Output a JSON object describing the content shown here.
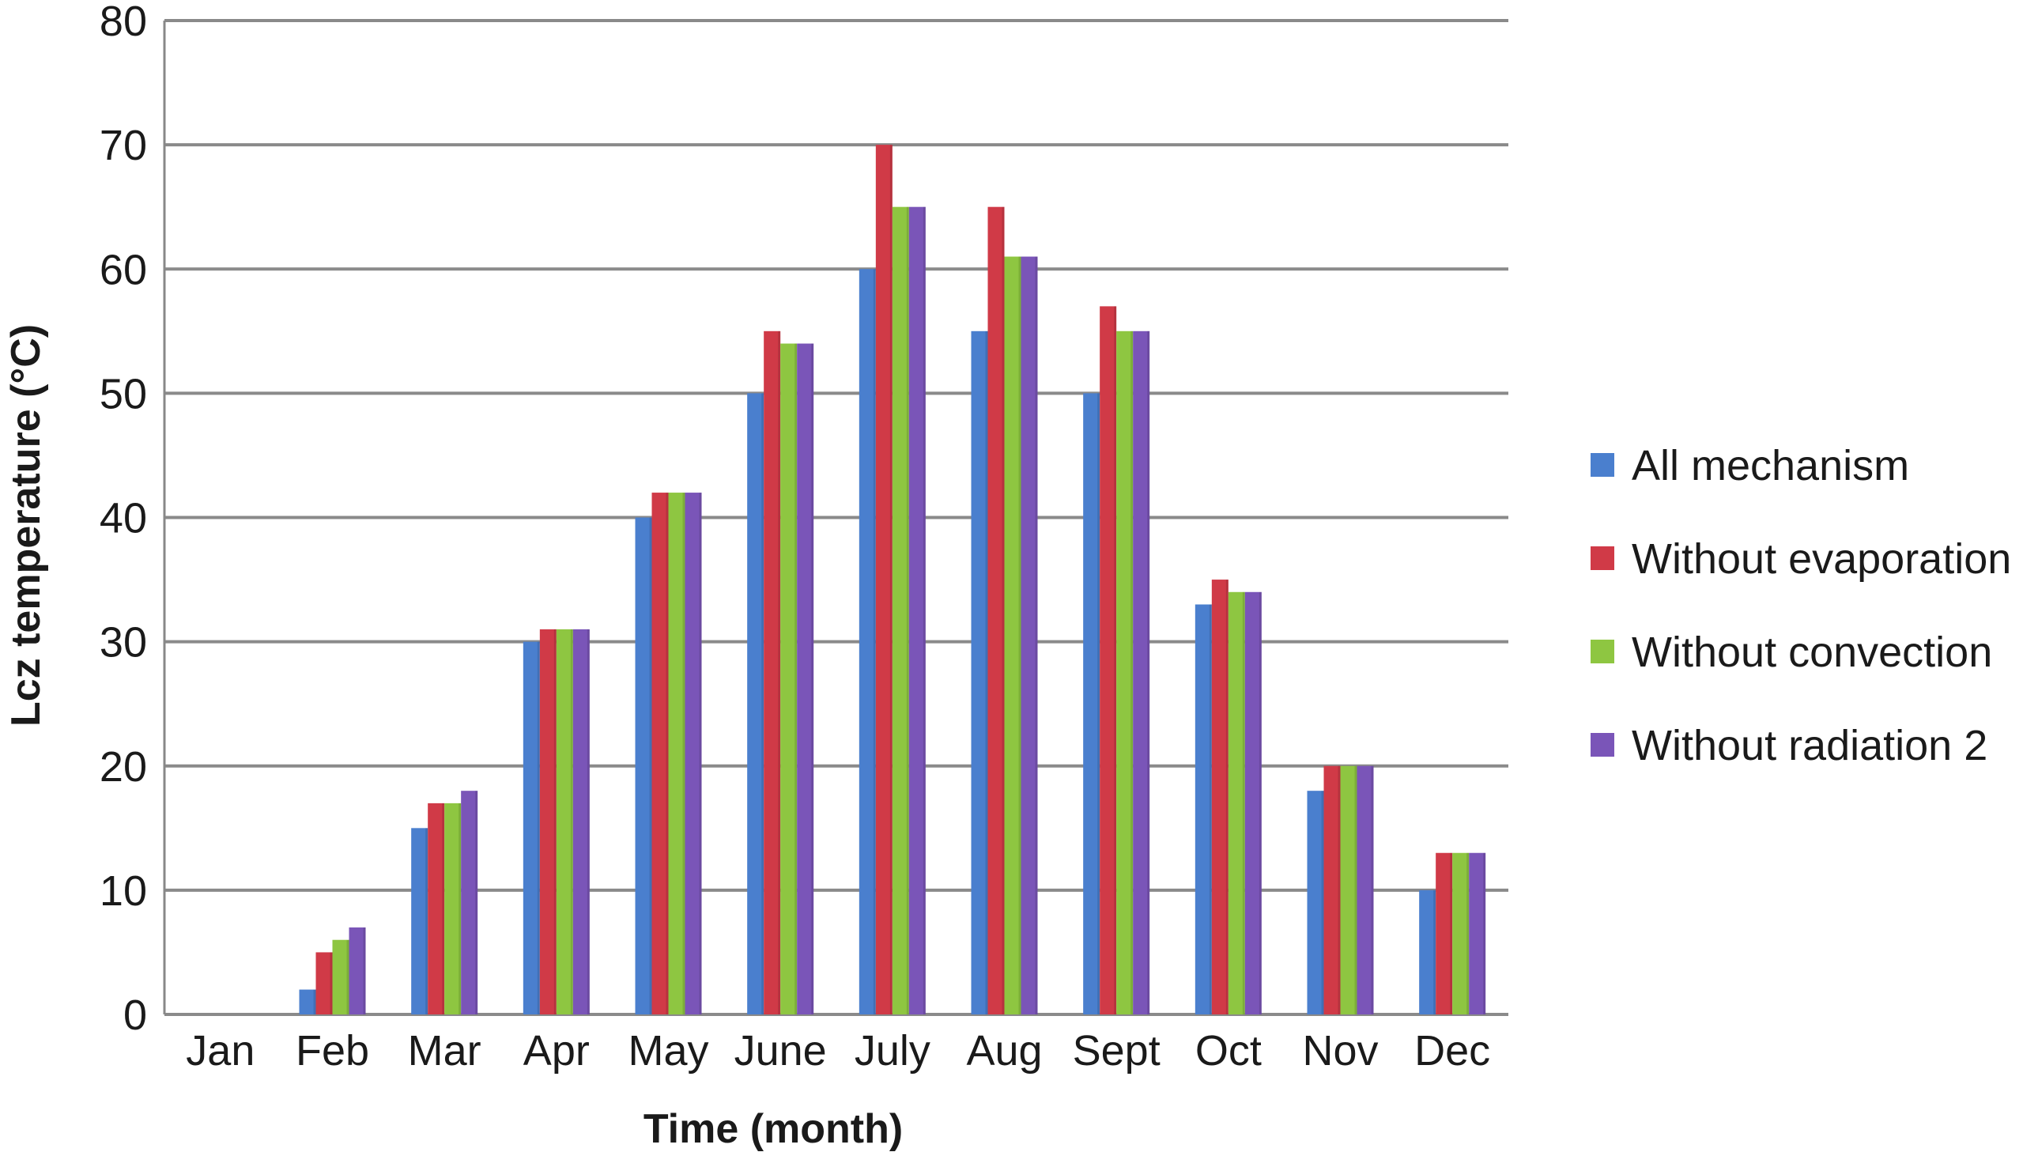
{
  "chart_data": {
    "type": "bar",
    "title": "",
    "xlabel": "Time (month)",
    "ylabel": "Lcz temperature (°C)",
    "ylim": [
      0,
      80
    ],
    "yticks": [
      0,
      10,
      20,
      30,
      40,
      50,
      60,
      70,
      80
    ],
    "grid": true,
    "legend_position": "right",
    "categories": [
      "Jan",
      "Feb",
      "Mar",
      "Apr",
      "May",
      "June",
      "July",
      "Aug",
      "Sept",
      "Oct",
      "Nov",
      "Dec"
    ],
    "series": [
      {
        "name": "All mechanism",
        "color": "#4a7fce",
        "values": [
          0,
          2,
          15,
          30,
          40,
          50,
          60,
          55,
          50,
          33,
          18,
          10
        ]
      },
      {
        "name": "Without evaporation",
        "color": "#d03a47",
        "values": [
          0,
          5,
          17,
          31,
          42,
          55,
          70,
          65,
          57,
          35,
          20,
          13
        ]
      },
      {
        "name": "Without convection",
        "color": "#8ec641",
        "values": [
          0,
          6,
          17,
          31,
          42,
          54,
          65,
          61,
          55,
          34,
          20,
          13
        ]
      },
      {
        "name": "Without radiation 2",
        "color": "#7a55b8",
        "values": [
          0,
          7,
          18,
          31,
          42,
          54,
          65,
          61,
          55,
          34,
          20,
          13
        ]
      }
    ]
  }
}
